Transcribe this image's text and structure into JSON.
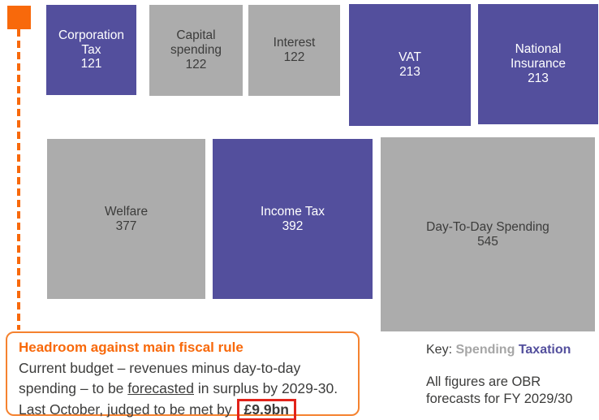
{
  "palette": {
    "taxation_purple": "#534F9D",
    "spending_gray": "#ACACAC",
    "accent_orange": "#F8690B",
    "highlight_red": "#E2231A",
    "text_dark": "#3C3C3B"
  },
  "chart_data": {
    "type": "proportional-area (treemap-like squares, area ~ value)",
    "title": "",
    "legend": {
      "label": "Key:",
      "position": "bottom-right",
      "entries": [
        {
          "name": "Spending",
          "color": "#ACACAC"
        },
        {
          "name": "Taxation",
          "color": "#534F9D"
        }
      ]
    },
    "items": [
      {
        "label": "Corporation Tax",
        "value": 121,
        "category": "Taxation"
      },
      {
        "label": "Capital spending",
        "value": 122,
        "category": "Spending"
      },
      {
        "label": "Interest",
        "value": 122,
        "category": "Spending"
      },
      {
        "label": "VAT",
        "value": 213,
        "category": "Taxation"
      },
      {
        "label": "National Insurance",
        "value": 213,
        "category": "Taxation"
      },
      {
        "label": "Welfare",
        "value": 377,
        "category": "Spending"
      },
      {
        "label": "Income Tax",
        "value": 392,
        "category": "Taxation"
      },
      {
        "label": "Day-To-Day Spending",
        "value": 545,
        "category": "Spending"
      }
    ],
    "note": "All figures are OBR forecasts for FY 2029/30"
  },
  "annotation": {
    "title": "Headroom against main fiscal rule",
    "body_part1": "Current budget – revenues minus day-to-day spending – to be ",
    "underlined_word": "forecasted",
    "body_part2": " in surplus by 2029-30. Last October, judged to be met by ",
    "highlight": "£9.9bn"
  }
}
